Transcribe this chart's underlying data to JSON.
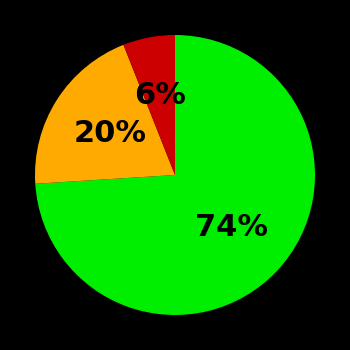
{
  "slices": [
    74,
    20,
    6
  ],
  "colors": [
    "#00ee00",
    "#ffaa00",
    "#cc0000"
  ],
  "labels": [
    "74%",
    "20%",
    "6%"
  ],
  "background_color": "#000000",
  "startangle": 90,
  "label_fontsize": 22,
  "label_fontweight": "bold",
  "label_radii": [
    0.55,
    0.55,
    0.58
  ]
}
